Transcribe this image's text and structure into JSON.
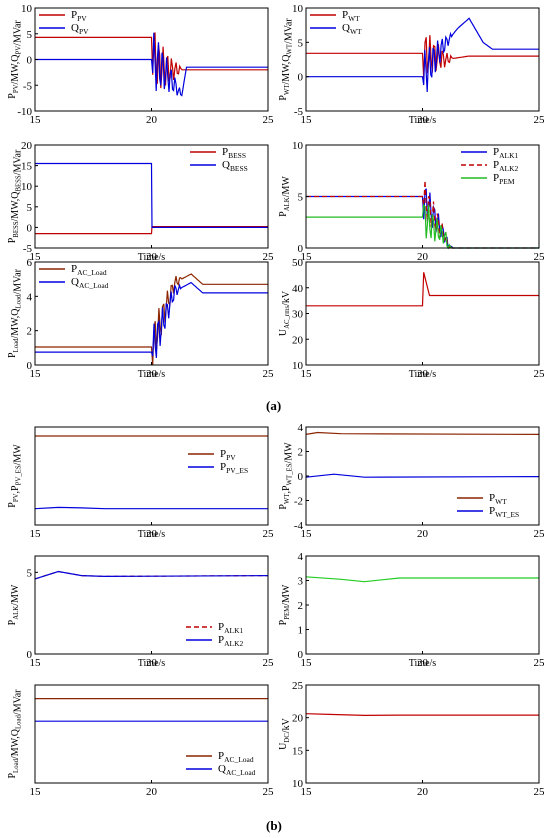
{
  "figure": {
    "label_a": "(a)",
    "label_b": "(b)"
  },
  "chart_data": [
    {
      "id": "a1",
      "type": "line",
      "ylabel": "P_PV/MW,Q_PV/MVar",
      "xlabel": "",
      "xlim": [
        15,
        25
      ],
      "ylim": [
        -10,
        10
      ],
      "xticks": [
        15,
        20,
        25
      ],
      "yticks": [
        -10,
        -5,
        0,
        5,
        10
      ],
      "legend": "top-left",
      "series": [
        {
          "name": "P_PV",
          "color": "#c00000",
          "points": [
            [
              15,
              4.3
            ],
            [
              20,
              4.3
            ],
            [
              20.2,
              -1
            ],
            [
              20.8,
              -2
            ],
            [
              25,
              -2
            ]
          ]
        },
        {
          "name": "Q_PV",
          "color": "#0000dd",
          "points": [
            [
              15,
              0
            ],
            [
              20,
              0
            ],
            [
              20.5,
              -2
            ],
            [
              21.0,
              -5
            ],
            [
              21.3,
              -7
            ],
            [
              21.5,
              -1.5
            ],
            [
              25,
              -1.5
            ]
          ]
        }
      ]
    },
    {
      "id": "a2",
      "type": "line",
      "ylabel": "P_WT/MW,Q_WT/MVar",
      "xlabel": "Time/s",
      "xlim": [
        15,
        25
      ],
      "ylim": [
        -5,
        10
      ],
      "xticks": [
        15,
        20,
        25
      ],
      "yticks": [
        -5,
        0,
        5,
        10
      ],
      "legend": "top-left",
      "series": [
        {
          "name": "P_WT",
          "color": "#c00000",
          "points": [
            [
              15,
              3.4
            ],
            [
              20,
              3.4
            ],
            [
              21,
              2.5
            ],
            [
              22,
              3.0
            ],
            [
              25,
              3.0
            ]
          ]
        },
        {
          "name": "Q_WT",
          "color": "#0000dd",
          "points": [
            [
              15,
              0
            ],
            [
              20,
              0
            ],
            [
              20.8,
              4
            ],
            [
              21.5,
              7
            ],
            [
              22.0,
              8.5
            ],
            [
              22.6,
              5
            ],
            [
              23,
              4
            ],
            [
              25,
              4
            ]
          ]
        }
      ]
    },
    {
      "id": "a3",
      "type": "line",
      "ylabel": "P_BESS/MW,Q_BESS/MVar",
      "xlabel": "Time/s",
      "xlim": [
        15,
        25
      ],
      "ylim": [
        -5,
        20
      ],
      "xticks": [
        15,
        20,
        25
      ],
      "yticks": [
        -5,
        0,
        5,
        10,
        15,
        20
      ],
      "legend": "top-right",
      "series": [
        {
          "name": "P_BESS",
          "color": "#c00000",
          "points": [
            [
              15,
              -1.5
            ],
            [
              20,
              -1.5
            ],
            [
              20.02,
              0.2
            ],
            [
              25,
              0.2
            ]
          ]
        },
        {
          "name": "Q_BESS",
          "color": "#0000dd",
          "points": [
            [
              15,
              15.5
            ],
            [
              20,
              15.5
            ],
            [
              20.02,
              0
            ],
            [
              25,
              0
            ]
          ]
        }
      ]
    },
    {
      "id": "a4",
      "type": "line",
      "ylabel": "P_ALK/MW",
      "xlabel": "",
      "xlim": [
        15,
        25
      ],
      "ylim": [
        0,
        10
      ],
      "xticks": [
        15,
        20,
        25
      ],
      "yticks": [
        0,
        5,
        10
      ],
      "legend": "top-right",
      "series": [
        {
          "name": "P_ALK1",
          "color": "#0000dd",
          "points": [
            [
              15,
              5
            ],
            [
              20,
              5
            ],
            [
              21,
              1
            ],
            [
              21.1,
              0
            ],
            [
              25,
              0
            ]
          ]
        },
        {
          "name": "P_ALK2",
          "color": "#c00000",
          "dash": true,
          "points": [
            [
              15,
              5
            ],
            [
              20,
              5
            ],
            [
              21,
              1
            ],
            [
              21.1,
              0
            ],
            [
              25,
              0
            ]
          ]
        },
        {
          "name": "P_PEM",
          "color": "#22bb22",
          "points": [
            [
              15,
              3
            ],
            [
              20,
              3
            ],
            [
              21,
              1
            ],
            [
              21.1,
              0
            ],
            [
              25,
              0
            ]
          ]
        }
      ]
    },
    {
      "id": "a5",
      "type": "line",
      "ylabel": "P_Load/MW,Q_Load/MVar",
      "xlabel": "Time/s",
      "xlim": [
        15,
        25
      ],
      "ylim": [
        0,
        6
      ],
      "xticks": [
        15,
        20,
        25
      ],
      "yticks": [
        0,
        2,
        4,
        6
      ],
      "legend": "top-left",
      "series": [
        {
          "name": "P_AC_Load",
          "color": "#8b2500",
          "points": [
            [
              15,
              1.05
            ],
            [
              20,
              1.05
            ],
            [
              21,
              4.8
            ],
            [
              21.7,
              5.3
            ],
            [
              22.2,
              4.7
            ],
            [
              25,
              4.7
            ]
          ]
        },
        {
          "name": "Q_AC_Load",
          "color": "#0000dd",
          "points": [
            [
              15,
              0.75
            ],
            [
              20,
              0.75
            ],
            [
              21,
              4.3
            ],
            [
              21.7,
              4.8
            ],
            [
              22.2,
              4.2
            ],
            [
              25,
              4.2
            ]
          ]
        }
      ]
    },
    {
      "id": "a6",
      "type": "line",
      "ylabel": "U_AC_rms/kV",
      "xlabel": "Time/s",
      "xlim": [
        15,
        25
      ],
      "ylim": [
        10,
        50
      ],
      "xticks": [
        15,
        20,
        25
      ],
      "yticks": [
        10,
        20,
        30,
        40,
        50
      ],
      "legend": "none",
      "series": [
        {
          "name": "",
          "color": "#c00000",
          "points": [
            [
              15,
              33
            ],
            [
              20,
              33
            ],
            [
              20.05,
              46
            ],
            [
              20.3,
              37
            ],
            [
              25,
              37
            ]
          ]
        }
      ]
    },
    {
      "id": "b1",
      "type": "line",
      "ylabel": "P_PV,P_PV_ES/MW",
      "xlabel": "Time/s",
      "xlim": [
        15,
        25
      ],
      "ylim": [
        -1,
        5
      ],
      "xticks": [
        15,
        20,
        25
      ],
      "yticks": [],
      "legend": "right",
      "series": [
        {
          "name": "P_PV",
          "color": "#8b2500",
          "points": [
            [
              15,
              4.45
            ],
            [
              25,
              4.45
            ]
          ]
        },
        {
          "name": "P_PV_ES",
          "color": "#0000dd",
          "points": [
            [
              15,
              0
            ],
            [
              16,
              0.08
            ],
            [
              17,
              0.05
            ],
            [
              18,
              0
            ],
            [
              20,
              0
            ],
            [
              25,
              0
            ]
          ]
        }
      ]
    },
    {
      "id": "b2",
      "type": "line",
      "ylabel": "P_WT,P_WT_ES/MW",
      "xlabel": "",
      "xlim": [
        15,
        25
      ],
      "ylim": [
        -4,
        4
      ],
      "xticks": [
        15,
        20,
        25
      ],
      "yticks": [
        -4,
        -2,
        0,
        2,
        4
      ],
      "legend": "bottom-right",
      "series": [
        {
          "name": "P_WT",
          "color": "#8b2500",
          "points": [
            [
              15,
              3.4
            ],
            [
              15.5,
              3.55
            ],
            [
              16.5,
              3.45
            ],
            [
              25,
              3.4
            ]
          ]
        },
        {
          "name": "P_WT_ES",
          "color": "#0000dd",
          "points": [
            [
              15,
              -0.1
            ],
            [
              16.2,
              0.15
            ],
            [
              17.5,
              -0.1
            ],
            [
              25,
              -0.05
            ]
          ]
        }
      ]
    },
    {
      "id": "b3",
      "type": "line",
      "ylabel": "P_ALK/MW",
      "xlabel": "Time/s",
      "xlim": [
        15,
        25
      ],
      "ylim": [
        0,
        6
      ],
      "xticks": [
        15,
        20,
        25
      ],
      "yticks": [
        0,
        5
      ],
      "legend": "bottom-right",
      "series": [
        {
          "name": "P_ALK1",
          "color": "#c00000",
          "dash": true,
          "points": [
            [
              15,
              4.6
            ],
            [
              16,
              5.05
            ],
            [
              17,
              4.8
            ],
            [
              18,
              4.75
            ],
            [
              25,
              4.8
            ]
          ]
        },
        {
          "name": "P_ALK2",
          "color": "#0000dd",
          "points": [
            [
              15,
              4.6
            ],
            [
              16,
              5.05
            ],
            [
              17,
              4.8
            ],
            [
              18,
              4.75
            ],
            [
              25,
              4.8
            ]
          ]
        }
      ]
    },
    {
      "id": "b4",
      "type": "line",
      "ylabel": "P_PEM/MW",
      "xlabel": "Time/s",
      "xlim": [
        15,
        25
      ],
      "ylim": [
        0,
        4
      ],
      "xticks": [
        15,
        20,
        25
      ],
      "yticks": [
        0,
        1,
        2,
        3,
        4
      ],
      "legend": "none",
      "series": [
        {
          "name": "",
          "color": "#22cc22",
          "points": [
            [
              15,
              3.15
            ],
            [
              16.5,
              3.05
            ],
            [
              17.5,
              2.95
            ],
            [
              19,
              3.1
            ],
            [
              25,
              3.1
            ]
          ]
        }
      ]
    },
    {
      "id": "b5",
      "type": "line",
      "ylabel": "P_Load/MW,Q_Load/MVar",
      "xlabel": "",
      "xlim": [
        15,
        25
      ],
      "ylim": [
        0,
        1.3
      ],
      "xticks": [
        15,
        20,
        25
      ],
      "yticks": [],
      "legend": "bottom-right",
      "series": [
        {
          "name": "P_AC_Load",
          "color": "#8b2500",
          "points": [
            [
              15,
              1.12
            ],
            [
              25,
              1.12
            ]
          ]
        },
        {
          "name": "Q_AC_Load",
          "color": "#0000dd",
          "points": [
            [
              15,
              0.82
            ],
            [
              25,
              0.82
            ]
          ]
        }
      ]
    },
    {
      "id": "b6",
      "type": "line",
      "ylabel": "U_DC/kV",
      "xlabel": "",
      "xlim": [
        15,
        25
      ],
      "ylim": [
        10,
        25
      ],
      "xticks": [
        15,
        20,
        25
      ],
      "yticks": [
        10,
        15,
        20,
        25
      ],
      "legend": "none",
      "series": [
        {
          "name": "",
          "color": "#c00000",
          "points": [
            [
              15,
              20.6
            ],
            [
              16,
              20.5
            ],
            [
              17.5,
              20.35
            ],
            [
              19,
              20.4
            ],
            [
              25,
              20.4
            ]
          ]
        }
      ]
    }
  ]
}
